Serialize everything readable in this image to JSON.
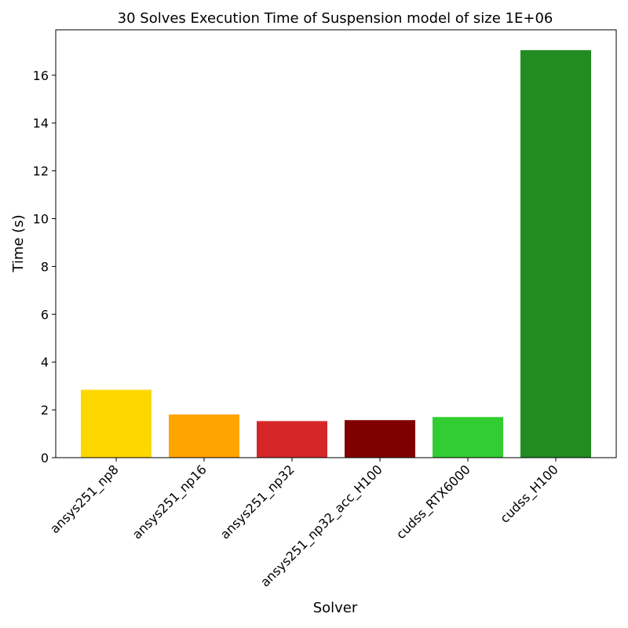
{
  "chart_data": {
    "type": "bar",
    "title": "30 Solves Execution Time of Suspension model of size 1E+06",
    "xlabel": "Solver",
    "ylabel": "Time (s)",
    "categories": [
      "ansys251_np8",
      "ansys251_np16",
      "ansys251_np32",
      "ansys251_np32_acc_H100",
      "cudss_RTX6000",
      "cudss_H100"
    ],
    "values": [
      2.84,
      1.81,
      1.53,
      1.57,
      1.7,
      17.05
    ],
    "colors": [
      "#ffd700",
      "#ffa500",
      "#d62728",
      "#800000",
      "#32cd32",
      "#228b22"
    ],
    "ylim": [
      0,
      17.9
    ],
    "yticks": [
      0,
      2,
      4,
      6,
      8,
      10,
      12,
      14,
      16
    ],
    "grid": false,
    "legend": "none"
  }
}
